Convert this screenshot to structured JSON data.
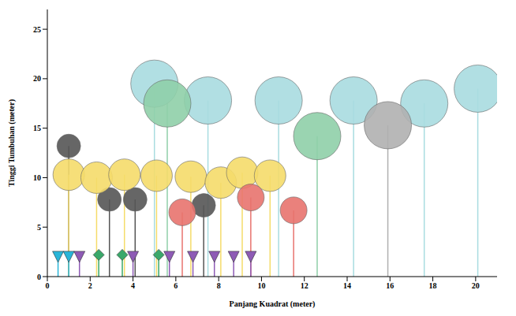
{
  "chart_data": {
    "type": "scatter",
    "x_label": "Panjang Kuadrat (meter)",
    "y_label": "Tinggi Tumbuhan (meter)",
    "xlim": [
      0,
      21
    ],
    "xticks": [
      0,
      2,
      4,
      6,
      8,
      10,
      12,
      14,
      16,
      18,
      20
    ],
    "ylim": [
      0,
      27
    ],
    "yticks": [
      0,
      5,
      10,
      15,
      20,
      25
    ],
    "grid": false,
    "series": [
      {
        "color": "#a8dce0",
        "marker": "circle",
        "x": [
          5.0,
          7.5,
          10.8,
          14.3,
          17.6,
          20.1
        ],
        "values": [
          19.5,
          17.8,
          17.8,
          17.8,
          17.5,
          19.0
        ]
      },
      {
        "color": "#8fcfa8",
        "marker": "circle",
        "x": [
          5.6,
          12.6
        ],
        "values": [
          17.5,
          14.2
        ]
      },
      {
        "color": "#b0b0b0",
        "marker": "circle",
        "x": [
          15.9
        ],
        "values": [
          15.3
        ]
      },
      {
        "color": "#555555",
        "marker": "circle",
        "x": [
          1.0,
          2.9,
          4.1,
          7.3
        ],
        "values": [
          13.2,
          7.8,
          7.8,
          7.2
        ]
      },
      {
        "color": "#f5dc6a",
        "marker": "circle",
        "x": [
          1.0,
          2.3,
          3.6,
          5.1,
          6.7,
          8.1,
          9.1,
          10.4
        ],
        "values": [
          10.3,
          10.0,
          10.3,
          10.2,
          10.1,
          9.5,
          10.5,
          10.2
        ]
      },
      {
        "color": "#e8736e",
        "marker": "circle",
        "x": [
          6.3,
          9.5,
          11.5
        ],
        "values": [
          6.5,
          8.0,
          6.7
        ]
      },
      {
        "color": "#29b5d8",
        "marker": "triangle-down",
        "x": [
          0.5,
          1.0
        ],
        "values": [
          2.0,
          2.0
        ]
      },
      {
        "color": "#8e5bb5",
        "marker": "triangle-down",
        "x": [
          1.5,
          4.0,
          5.7,
          6.8,
          7.8,
          8.7,
          9.5
        ],
        "values": [
          2.0,
          2.0,
          2.0,
          2.0,
          2.0,
          2.0,
          2.0
        ]
      },
      {
        "color": "#3aa86a",
        "marker": "diamond",
        "x": [
          2.4,
          3.5,
          5.2
        ],
        "values": [
          2.2,
          2.2,
          2.2
        ]
      }
    ]
  }
}
